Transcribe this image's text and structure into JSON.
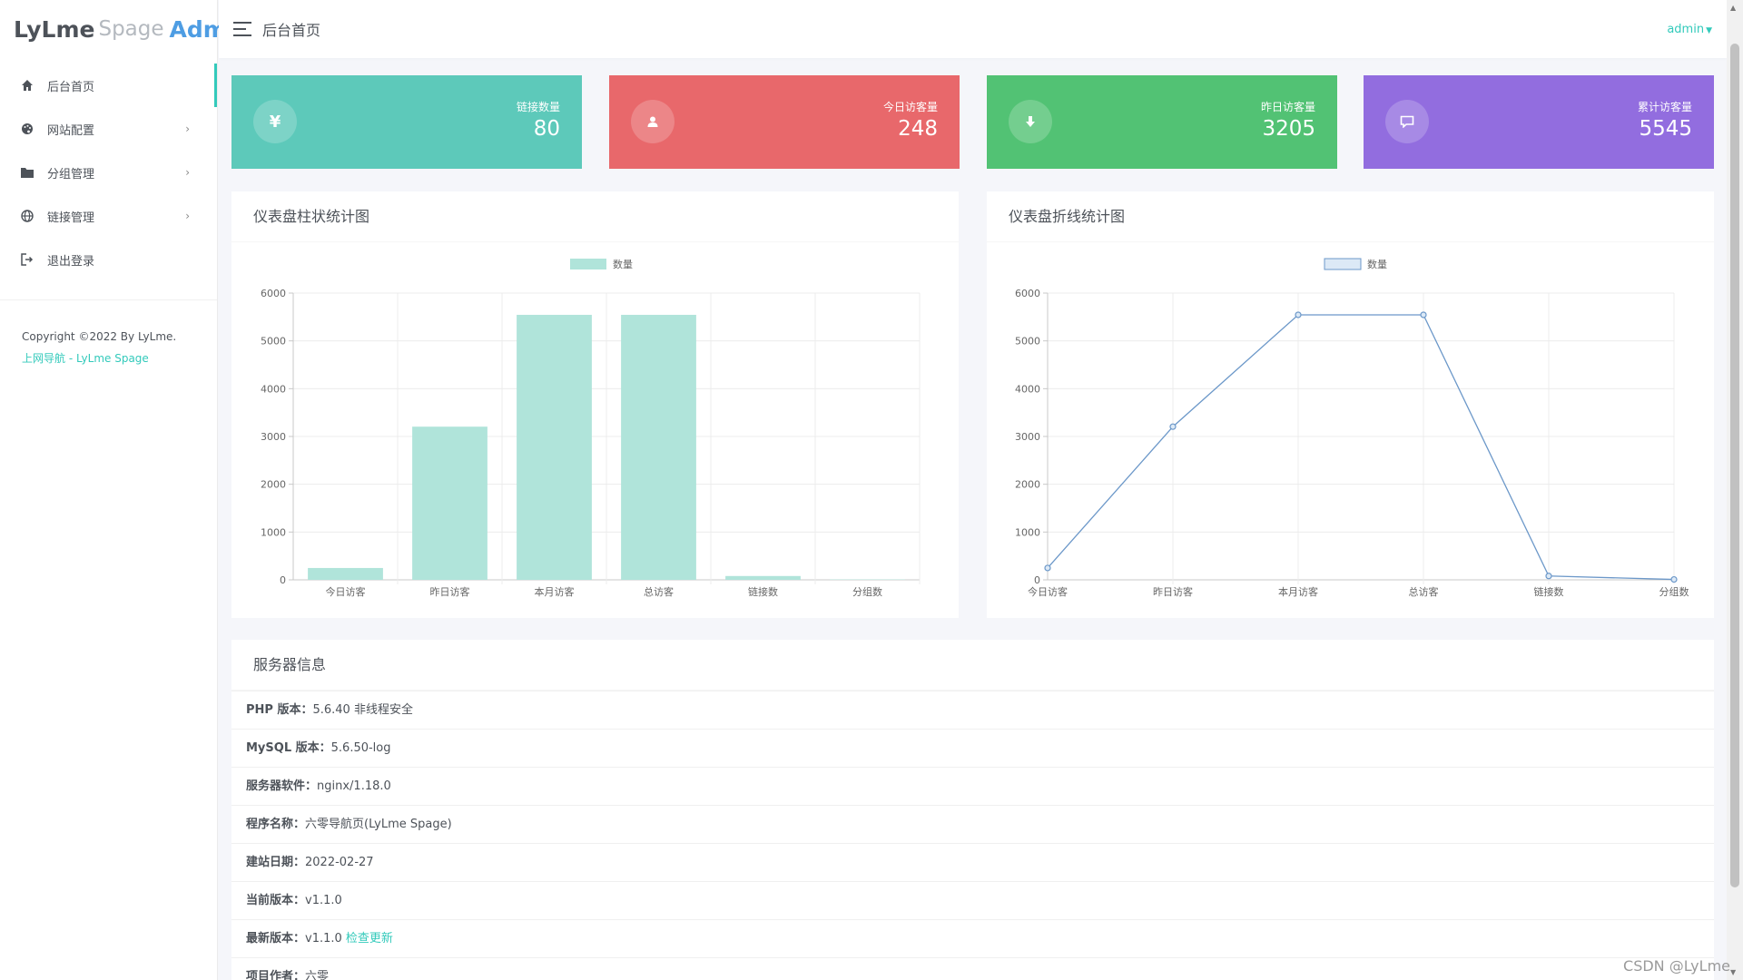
{
  "logo": {
    "part1": "LyLme",
    "part2": "Spage",
    "part3": "Admin"
  },
  "sidebar": {
    "items": [
      {
        "label": "后台首页",
        "icon": "home-icon",
        "has_arrow": false
      },
      {
        "label": "网站配置",
        "icon": "palette-icon",
        "has_arrow": true
      },
      {
        "label": "分组管理",
        "icon": "folder-icon",
        "has_arrow": true
      },
      {
        "label": "链接管理",
        "icon": "globe-icon",
        "has_arrow": true
      },
      {
        "label": "退出登录",
        "icon": "logout-icon",
        "has_arrow": false
      }
    ],
    "copyright": "Copyright ©2022 By LyLme.",
    "site_link": "上网导航 - LyLme Spage"
  },
  "header": {
    "title": "后台首页",
    "user": "admin"
  },
  "stats": [
    {
      "label": "链接数量",
      "value": "80",
      "color": "#5dc9ba",
      "icon": "yen-icon"
    },
    {
      "label": "今日访客量",
      "value": "248",
      "color": "#e8686b",
      "icon": "user-icon"
    },
    {
      "label": "昨日访客量",
      "value": "3205",
      "color": "#52c274",
      "icon": "download-icon"
    },
    {
      "label": "累计访客量",
      "value": "5545",
      "color": "#926ddf",
      "icon": "comment-icon"
    }
  ],
  "panels": {
    "bar_title": "仪表盘柱状统计图",
    "line_title": "仪表盘折线统计图",
    "info_title": "服务器信息"
  },
  "chart_data": [
    {
      "type": "bar",
      "categories": [
        "今日访客",
        "昨日访客",
        "本月访客",
        "总访客",
        "链接数",
        "分组数"
      ],
      "series": [
        {
          "name": "数量",
          "values": [
            248,
            3205,
            5545,
            5545,
            80,
            8
          ]
        }
      ],
      "ylim": [
        0,
        6000
      ],
      "yticks": [
        0,
        1000,
        2000,
        3000,
        4000,
        5000,
        6000
      ],
      "legend": "top-center",
      "grid": true,
      "color": "#b0e4da"
    },
    {
      "type": "line",
      "categories": [
        "今日访客",
        "昨日访客",
        "本月访客",
        "总访客",
        "链接数",
        "分组数"
      ],
      "series": [
        {
          "name": "数量",
          "values": [
            248,
            3205,
            5545,
            5545,
            80,
            8
          ]
        }
      ],
      "ylim": [
        0,
        6000
      ],
      "yticks": [
        0,
        1000,
        2000,
        3000,
        4000,
        5000,
        6000
      ],
      "legend": "top-center",
      "grid": true,
      "color": "#6c98c9"
    }
  ],
  "server_info": [
    {
      "key": "PHP 版本：",
      "value": "5.6.40 非线程安全"
    },
    {
      "key": "MySQL 版本：",
      "value": "5.6.50-log"
    },
    {
      "key": "服务器软件：",
      "value": "nginx/1.18.0"
    },
    {
      "key": "程序名称：",
      "value": "六零导航页(LyLme Spage)"
    },
    {
      "key": "建站日期：",
      "value": "2022-02-27"
    },
    {
      "key": "当前版本：",
      "value": "v1.1.0"
    },
    {
      "key": "最新版本：",
      "value": "v1.1.0",
      "link": "检查更新"
    },
    {
      "key": "项目作者：",
      "value": "六零"
    }
  ],
  "watermark": "CSDN @LyLme"
}
